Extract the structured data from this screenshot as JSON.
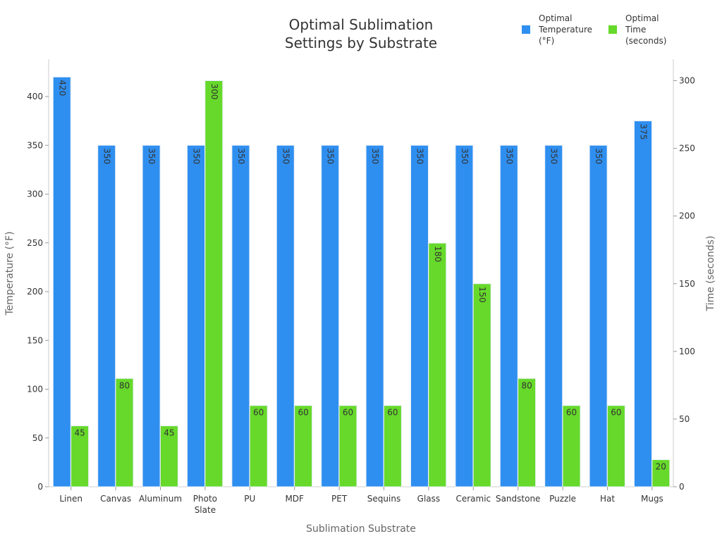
{
  "chart_data": {
    "type": "bar",
    "title_lines": [
      "Optimal Sublimation",
      "Settings by Substrate"
    ],
    "xlabel": "Sublimation Substrate",
    "ylabel_left": "Temperature (°F)",
    "ylabel_right": "Time (seconds)",
    "categories": [
      "Linen",
      "Canvas",
      "Aluminum",
      "Photo Slate",
      "PU",
      "MDF",
      "PET",
      "Sequins",
      "Glass",
      "Ceramic",
      "Sandstone",
      "Puzzle",
      "Hat",
      "Mugs"
    ],
    "series": [
      {
        "name": "Optimal Temperature (°F)",
        "legend_lines": [
          "Optimal",
          "Temperature",
          "(°F)"
        ],
        "axis": "left",
        "color": "#2f8ff0",
        "values": [
          420,
          350,
          350,
          350,
          350,
          350,
          350,
          350,
          350,
          350,
          350,
          350,
          350,
          375
        ]
      },
      {
        "name": "Optimal Time (seconds)",
        "legend_lines": [
          "Optimal",
          "Time",
          "(seconds)"
        ],
        "axis": "right",
        "color": "#66d92a",
        "values": [
          45,
          80,
          45,
          300,
          60,
          60,
          60,
          60,
          180,
          150,
          80,
          60,
          60,
          20
        ]
      }
    ],
    "ylim_left": [
      0,
      440
    ],
    "yticks_left": [
      0,
      50,
      100,
      150,
      200,
      250,
      300,
      350,
      400
    ],
    "ylim_right": [
      0,
      315
    ],
    "yticks_right": [
      0,
      50,
      100,
      150,
      200,
      250,
      300
    ],
    "legend_position": "top-right",
    "grid": false,
    "data_labels": true
  }
}
